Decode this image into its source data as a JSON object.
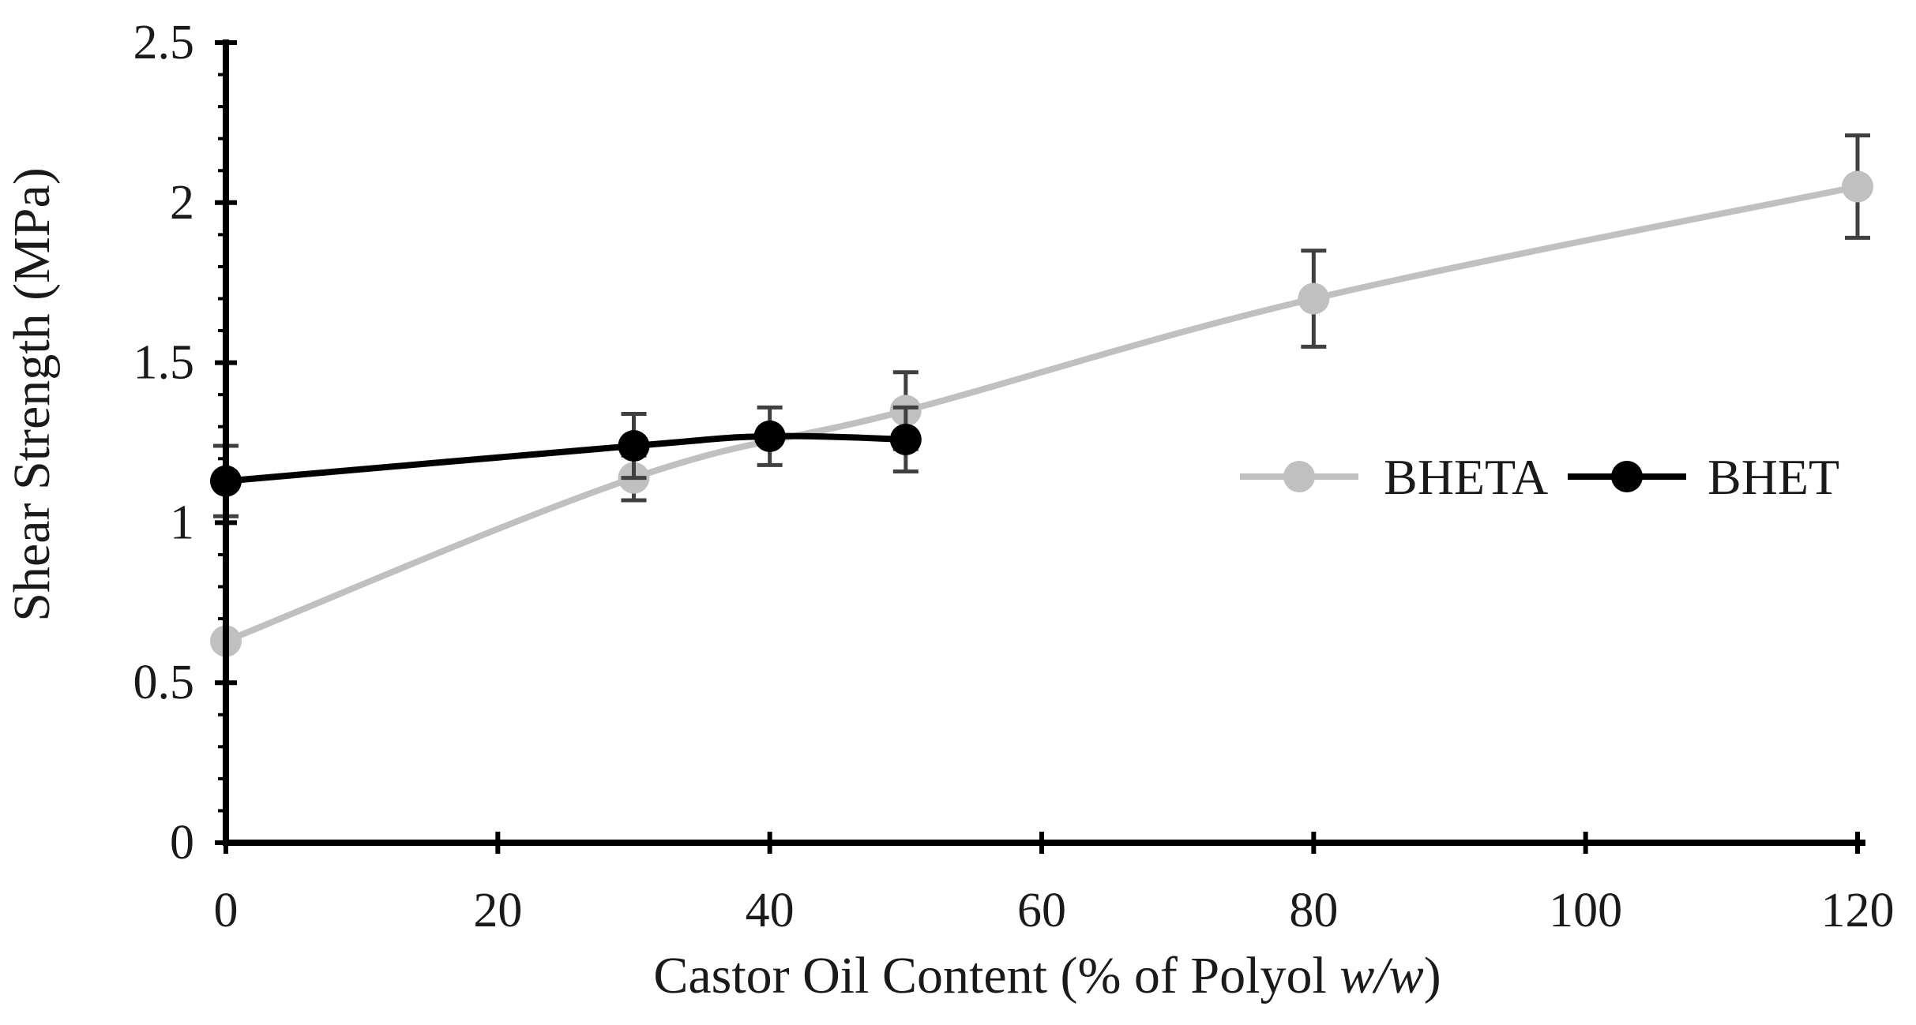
{
  "chart_data": {
    "type": "line",
    "title": "",
    "xlabel": "Castor Oil Content (% of Polyol ",
    "xlabel_italic": "w/w",
    "xlabel_suffix": ")",
    "ylabel": "Shear Strength (MPa)",
    "xlim": [
      0,
      120
    ],
    "ylim": [
      0,
      2.5
    ],
    "x_ticks": [
      0,
      20,
      40,
      60,
      80,
      100,
      120
    ],
    "y_ticks": [
      0,
      0.5,
      1,
      1.5,
      2,
      2.5
    ],
    "x_tick_labels": [
      "0",
      "20",
      "40",
      "60",
      "80",
      "100",
      "120"
    ],
    "y_tick_labels": [
      "0",
      "0.5",
      "1",
      "1.5",
      "2",
      "2.5"
    ],
    "grid": false,
    "legend_position": "right",
    "series": [
      {
        "name": "BHETA",
        "color": "#c0c0c0",
        "x": [
          0,
          30,
          50,
          80,
          120
        ],
        "y": [
          0.63,
          1.14,
          1.35,
          1.7,
          2.05
        ],
        "err": [
          0.0,
          0.07,
          0.12,
          0.15,
          0.16
        ]
      },
      {
        "name": "BHET",
        "color": "#000000",
        "x": [
          0,
          30,
          40,
          50
        ],
        "y": [
          1.13,
          1.24,
          1.27,
          1.26
        ],
        "err": [
          0.11,
          0.1,
          0.09,
          0.1
        ]
      }
    ]
  }
}
